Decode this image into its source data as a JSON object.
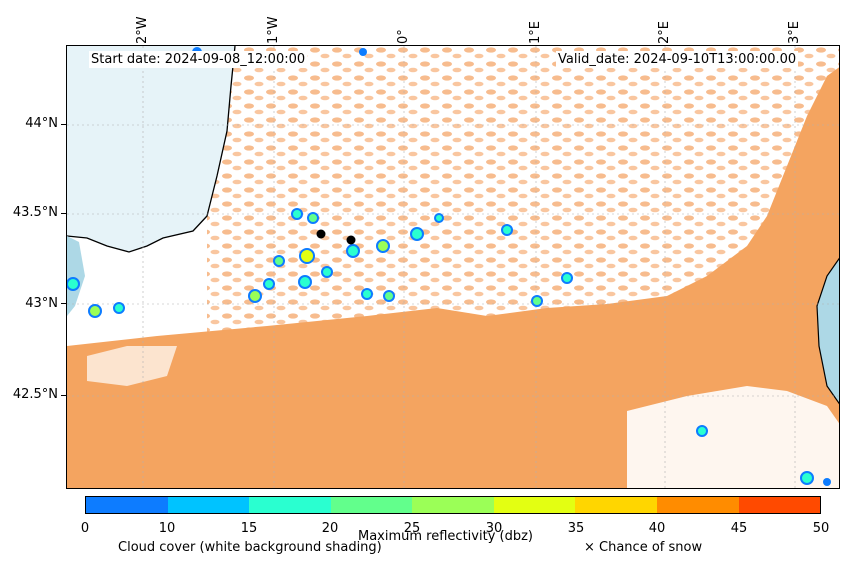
{
  "header": {
    "start_date": "Start date: 2024-09-08_12:00:00",
    "valid_date": "Valid_date: 2024-09-10T13:00:00.00"
  },
  "map": {
    "lat_labels": [
      "44°N",
      "43.5°N",
      "43°N",
      "42.5°N"
    ],
    "lon_labels": [
      "2°W",
      "1°W",
      "0°",
      "1°E",
      "2°E",
      "3°E"
    ],
    "points": [
      {
        "name": "marker-1"
      },
      {
        "name": "marker-2"
      }
    ],
    "colors": {
      "sea": "#add8e6",
      "dry_land": "#f4a460",
      "cloud": "#ffffff",
      "coast": "#000000"
    }
  },
  "colorbar": {
    "title": "Maximum reflectivity (dbz)",
    "ticks": [
      "0",
      "10",
      "15",
      "20",
      "25",
      "30",
      "35",
      "40",
      "45",
      "50"
    ],
    "colors": [
      "#0d7cff",
      "#00c3ff",
      "#2affd0",
      "#62ff8c",
      "#9bff57",
      "#e3ff12",
      "#ffd600",
      "#ff8c00",
      "#ff4a00"
    ]
  },
  "legend": {
    "cloud_cover": "Cloud cover (white background shading)",
    "snow": "× Chance of snow"
  }
}
